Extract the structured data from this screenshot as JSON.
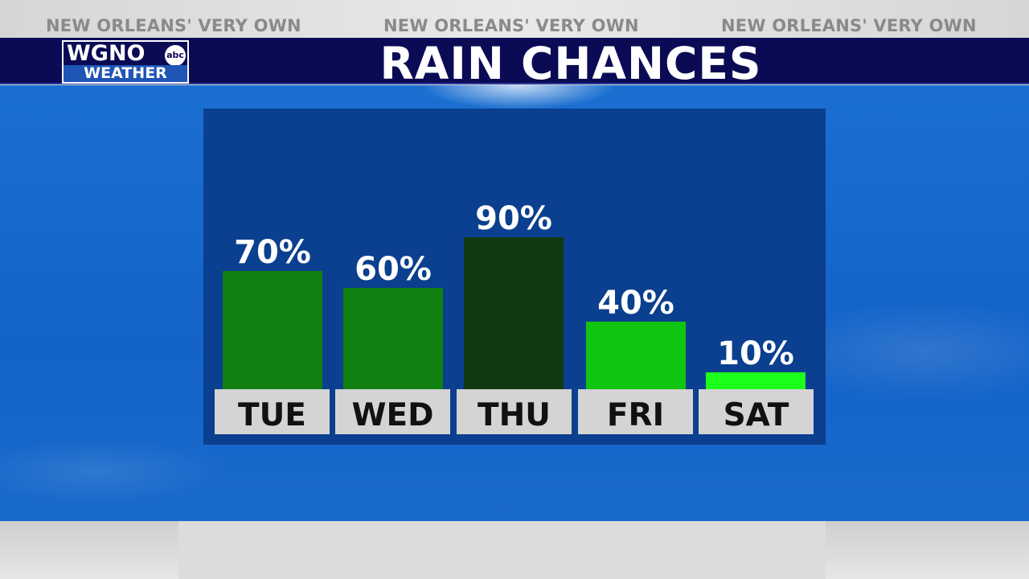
{
  "header": {
    "taglines": [
      "NEW ORLEANS' VERY OWN",
      "NEW ORLEANS' VERY OWN",
      "NEW ORLEANS' VERY OWN"
    ],
    "title": "RAIN CHANCES"
  },
  "logo": {
    "top": "WGNO",
    "network": "abc",
    "bottom": "WEATHER"
  },
  "colors": {
    "title_bar": "#0b0b55",
    "panel": "#0b3f8f",
    "tick_box": "#d4d4d4"
  },
  "chart_data": {
    "type": "bar",
    "title": "RAIN CHANCES",
    "categories": [
      "TUE",
      "WED",
      "THU",
      "FRI",
      "SAT"
    ],
    "values": [
      70,
      60,
      90,
      40,
      10
    ],
    "data_labels": [
      "70%",
      "60%",
      "90%",
      "40%",
      "10%"
    ],
    "bar_colors": [
      "#108010",
      "#108010",
      "#113a12",
      "#10c510",
      "#1bff1b"
    ],
    "ylim": [
      0,
      100
    ],
    "grid": false,
    "legend": "none"
  }
}
